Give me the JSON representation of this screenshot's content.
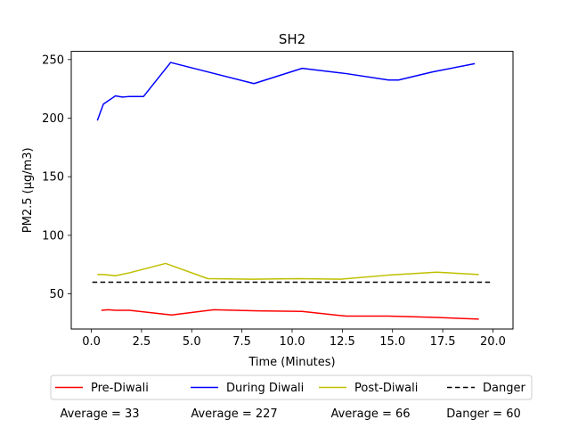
{
  "chart_data": {
    "type": "line",
    "title": "SH2",
    "xlabel": "Time (Minutes)",
    "ylabel": "PM2.5 (µg/m3)",
    "xlim": [
      -1,
      21
    ],
    "ylim": [
      20,
      257
    ],
    "xticks": [
      0.0,
      2.5,
      5.0,
      7.5,
      10.0,
      12.5,
      15.0,
      17.5,
      20.0
    ],
    "xtick_labels": [
      "0.0",
      "2.5",
      "5.0",
      "7.5",
      "10.0",
      "12.5",
      "15.0",
      "17.5",
      "20.0"
    ],
    "yticks": [
      50,
      100,
      150,
      200,
      250
    ],
    "ytick_labels": [
      "50",
      "100",
      "150",
      "200",
      "250"
    ],
    "grid": false,
    "legend_position": "below",
    "series": [
      {
        "name": "Pre-Diwali",
        "color": "#ff0000",
        "style": "solid",
        "x": [
          0.5,
          0.85,
          1.2,
          1.9,
          4.0,
          6.1,
          8.3,
          10.5,
          12.7,
          14.8,
          17.0,
          19.3
        ],
        "y": [
          36,
          36.5,
          36,
          36,
          32,
          36.5,
          35.5,
          35,
          31,
          31,
          30,
          28.5
        ]
      },
      {
        "name": "During Diwali",
        "color": "#0000ff",
        "style": "solid",
        "x": [
          0.3,
          0.6,
          1.2,
          1.55,
          1.9,
          2.6,
          3.95,
          8.1,
          10.5,
          12.7,
          14.8,
          15.3,
          17.0,
          19.1
        ],
        "y": [
          198,
          212,
          219,
          218,
          218.5,
          218.5,
          247.5,
          229.5,
          242.5,
          238,
          232.5,
          232.5,
          239.5,
          246.5
        ]
      },
      {
        "name": "Post-Diwali",
        "color": "#bfbf00",
        "style": "solid",
        "x": [
          0.3,
          0.6,
          1.2,
          1.9,
          3.7,
          5.8,
          8.0,
          10.3,
          12.4,
          14.8,
          17.2,
          19.3
        ],
        "y": [
          66.5,
          66.5,
          65.5,
          68,
          76,
          63,
          62.5,
          63,
          62.5,
          66,
          68.5,
          66.5
        ]
      },
      {
        "name": "Danger",
        "color": "#000000",
        "style": "dashed",
        "x": [
          0.05,
          20.0
        ],
        "y": [
          60,
          60
        ]
      }
    ],
    "averages": [
      "Average = 33",
      "Average = 227",
      "Average = 66",
      "Danger = 60"
    ]
  }
}
